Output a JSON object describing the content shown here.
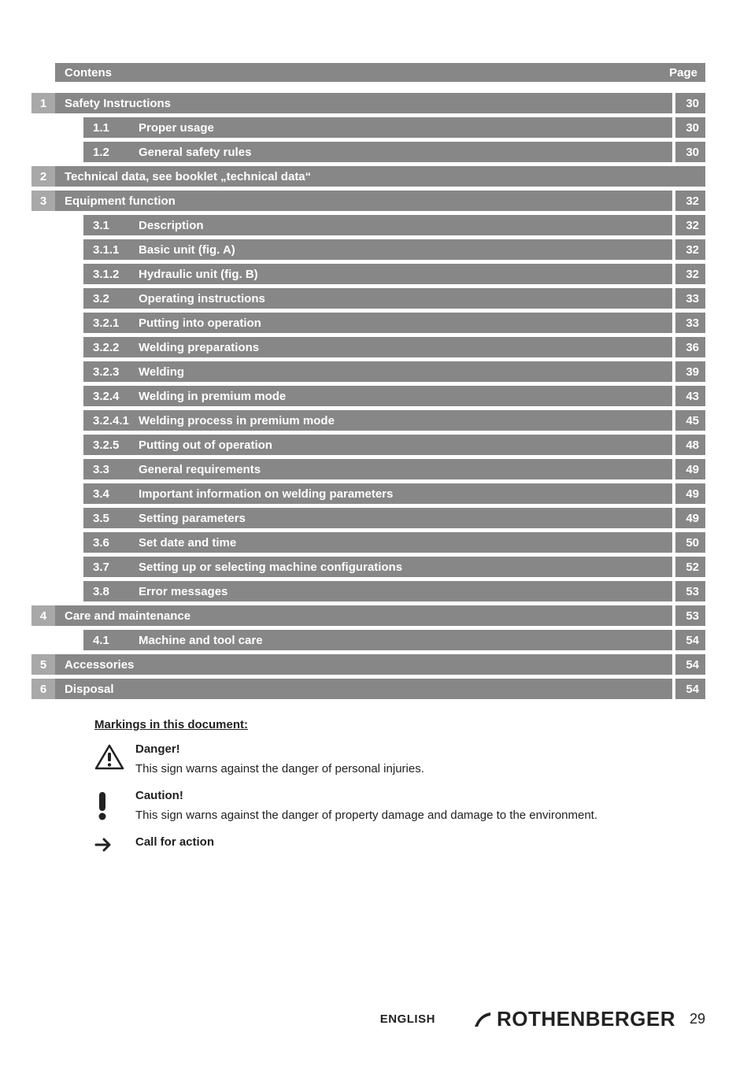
{
  "header": {
    "left": "Contens",
    "right": "Page"
  },
  "rows": [
    {
      "chap": "1",
      "indent": 0,
      "title": "Safety Instructions",
      "page": "30"
    },
    {
      "chap": "",
      "indent": 1,
      "num": "1.1",
      "title": "Proper usage",
      "page": "30"
    },
    {
      "chap": "",
      "indent": 1,
      "num": "1.2",
      "title": "General safety rules",
      "page": "30"
    },
    {
      "chap": "2",
      "indent": 0,
      "title": "Technical data, see booklet „technical data“",
      "page": ""
    },
    {
      "chap": "3",
      "indent": 0,
      "title": "Equipment function",
      "page": "32"
    },
    {
      "chap": "",
      "indent": 1,
      "num": "3.1",
      "title": "Description",
      "page": "32"
    },
    {
      "chap": "",
      "indent": 1,
      "num": "3.1.1",
      "title": "Basic unit (fig. A)",
      "page": "32"
    },
    {
      "chap": "",
      "indent": 1,
      "num": "3.1.2",
      "title": "Hydraulic unit (fig. B)",
      "page": "32"
    },
    {
      "chap": "",
      "indent": 1,
      "num": "3.2",
      "title": "Operating instructions",
      "page": "33"
    },
    {
      "chap": "",
      "indent": 1,
      "num": "3.2.1",
      "title": "Putting into operation",
      "page": "33"
    },
    {
      "chap": "",
      "indent": 1,
      "num": "3.2.2",
      "title": "Welding preparations",
      "page": "36"
    },
    {
      "chap": "",
      "indent": 1,
      "num": "3.2.3",
      "title": "Welding",
      "page": "39"
    },
    {
      "chap": "",
      "indent": 1,
      "num": "3.2.4",
      "title": "Welding in premium mode",
      "page": "43"
    },
    {
      "chap": "",
      "indent": 1,
      "num": "3.2.4.1",
      "title": "Welding process in premium mode",
      "page": "45"
    },
    {
      "chap": "",
      "indent": 1,
      "num": "3.2.5",
      "title": "Putting out of operation",
      "page": "48"
    },
    {
      "chap": "",
      "indent": 1,
      "num": "3.3",
      "title": "General requirements",
      "page": "49"
    },
    {
      "chap": "",
      "indent": 1,
      "num": "3.4",
      "title": "Important information on welding parameters",
      "page": "49"
    },
    {
      "chap": "",
      "indent": 1,
      "num": "3.5",
      "title": "Setting parameters",
      "page": "49"
    },
    {
      "chap": "",
      "indent": 1,
      "num": "3.6",
      "title": "Set date and time",
      "page": "50"
    },
    {
      "chap": "",
      "indent": 1,
      "num": "3.7",
      "title": "Setting up or selecting machine configurations",
      "page": "52"
    },
    {
      "chap": "",
      "indent": 1,
      "num": "3.8",
      "title": "Error messages",
      "page": "53"
    },
    {
      "chap": "4",
      "indent": 0,
      "title": "Care and maintenance",
      "page": "53"
    },
    {
      "chap": "",
      "indent": 1,
      "num": "4.1",
      "title": "Machine and tool care",
      "page": "54"
    },
    {
      "chap": "5",
      "indent": 0,
      "title": "Accessories",
      "page": "54"
    },
    {
      "chap": "6",
      "indent": 0,
      "title": "Disposal",
      "page": "54"
    }
  ],
  "markings": {
    "heading": "Markings in this document:",
    "items": [
      {
        "icon": "danger",
        "label": "Danger!",
        "desc": "This sign warns against the danger of personal injuries."
      },
      {
        "icon": "caution",
        "label": "Caution!",
        "desc": "This sign warns against the danger of property damage and damage to the environment."
      },
      {
        "icon": "arrow",
        "label": "Call for action",
        "desc": ""
      }
    ]
  },
  "footer": {
    "lang": "ENGLISH",
    "brand": "ROTHENBERGER",
    "pagenum": "29"
  },
  "colors": {
    "bar": "#878787",
    "chapbox": "#a8a8a8",
    "text_white": "#ffffff",
    "body_text": "#222222"
  }
}
